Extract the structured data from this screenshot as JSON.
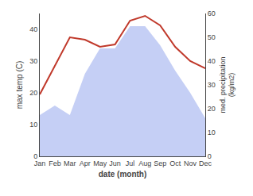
{
  "chart_data": {
    "type": "line",
    "xlabel": "date (month)",
    "ylabel": "max temp (C)",
    "y2label": "med. precipitation\n(kg/m2)",
    "categories": [
      "Jan",
      "Feb",
      "Mar",
      "Apr",
      "May",
      "Jun",
      "Jul",
      "Aug",
      "Sep",
      "Oct",
      "Nov",
      "Dec"
    ],
    "series": [
      {
        "type": "area",
        "color": "#c5cff5",
        "values": [
          13,
          16,
          13,
          26,
          34,
          34,
          41,
          41,
          35,
          27,
          20,
          12
        ]
      },
      {
        "type": "line",
        "color": "#c0392b",
        "axis": "y2",
        "values": [
          26,
          38,
          50,
          49,
          46,
          47,
          57,
          59,
          55,
          46,
          40,
          37
        ]
      }
    ],
    "ylim": [
      0,
      45
    ],
    "yticks": [
      0,
      10,
      20,
      30,
      40
    ],
    "y2lim": [
      0,
      60
    ],
    "y2ticks": [
      0,
      10,
      20,
      30,
      40,
      50,
      60
    ],
    "grid": false
  }
}
